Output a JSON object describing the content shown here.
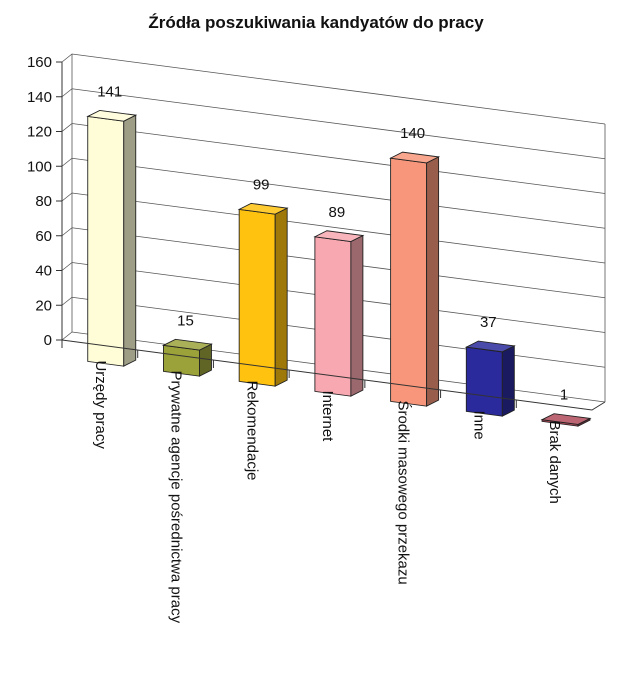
{
  "chart_data": {
    "type": "bar",
    "title": "Źródła poszukiwania kandyatów do pracy",
    "xlabel": "",
    "ylabel": "",
    "categories": [
      "Urzędy pracy",
      "Prywatne agencje pośrednictwa pracy",
      "Rekomendacje",
      "Internet",
      "Środki masowego przekazu",
      "Inne",
      "Brak danych"
    ],
    "values": [
      141,
      15,
      99,
      89,
      140,
      37,
      1
    ],
    "ylim": [
      0,
      160
    ],
    "yticks": [
      0,
      20,
      40,
      60,
      80,
      100,
      120,
      140,
      160
    ],
    "grid": true,
    "legend": "none",
    "colors": [
      "#FFFDD8",
      "#9BA23A",
      "#FFC20E",
      "#F8A8B0",
      "#F7967A",
      "#2A2A9C",
      "#B04A5A"
    ]
  }
}
